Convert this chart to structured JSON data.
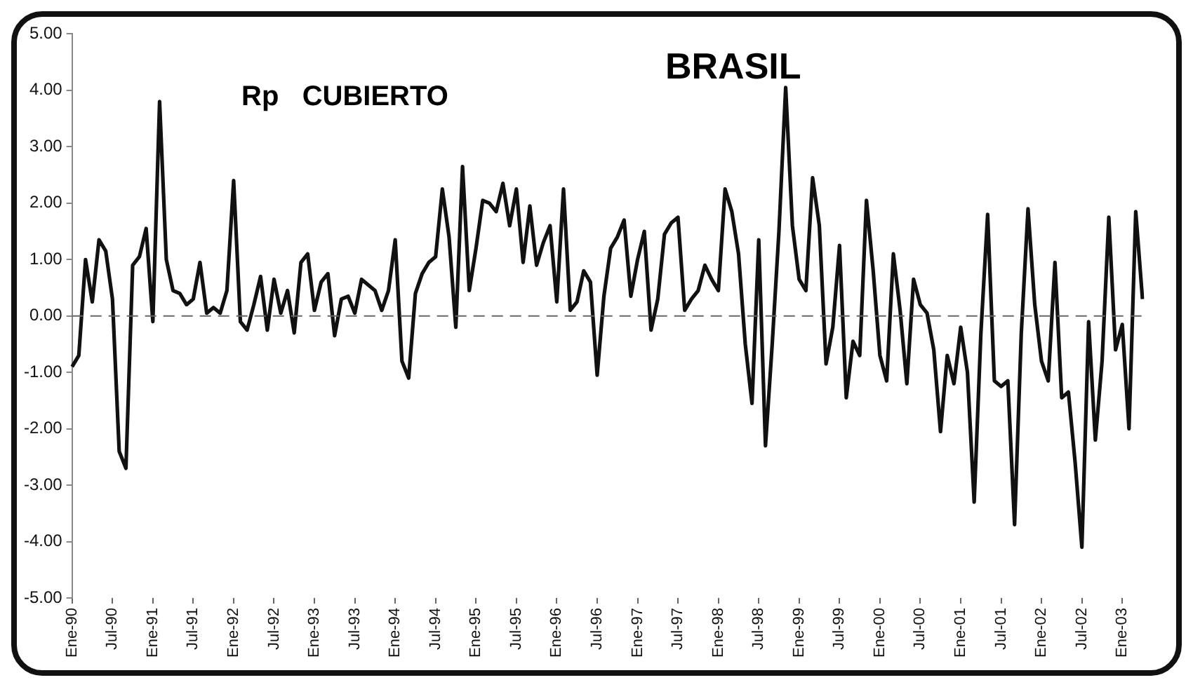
{
  "chart_data": {
    "type": "line",
    "title": "BRASIL",
    "subtitle": "Rp   CUBIERTO",
    "categories": [
      "Ene-90",
      null,
      null,
      null,
      null,
      null,
      "Jul-90",
      null,
      null,
      null,
      null,
      null,
      "Ene-91",
      null,
      null,
      null,
      null,
      null,
      "Jul-91",
      null,
      null,
      null,
      null,
      null,
      "Ene-92",
      null,
      null,
      null,
      null,
      null,
      "Jul-92",
      null,
      null,
      null,
      null,
      null,
      "Ene-93",
      null,
      null,
      null,
      null,
      null,
      "Jul-93",
      null,
      null,
      null,
      null,
      null,
      "Ene-94",
      null,
      null,
      null,
      null,
      null,
      "Jul-94",
      null,
      null,
      null,
      null,
      null,
      "Ene-95",
      null,
      null,
      null,
      null,
      null,
      "Jul-95",
      null,
      null,
      null,
      null,
      null,
      "Ene-96",
      null,
      null,
      null,
      null,
      null,
      "Jul-96",
      null,
      null,
      null,
      null,
      null,
      "Ene-97",
      null,
      null,
      null,
      null,
      null,
      "Jul-97",
      null,
      null,
      null,
      null,
      null,
      "Ene-98",
      null,
      null,
      null,
      null,
      null,
      "Jul-98",
      null,
      null,
      null,
      null,
      null,
      "Ene-99",
      null,
      null,
      null,
      null,
      null,
      "Jul-99",
      null,
      null,
      null,
      null,
      null,
      "Ene-00",
      null,
      null,
      null,
      null,
      null,
      "Jul-00",
      null,
      null,
      null,
      null,
      null,
      "Ene-01",
      null,
      null,
      null,
      null,
      null,
      "Jul-01",
      null,
      null,
      null,
      null,
      null,
      "Ene-02",
      null,
      null,
      null,
      null,
      null,
      "Jul-02",
      null,
      null,
      null,
      null,
      null,
      "Ene-03",
      null,
      null,
      null
    ],
    "series": [
      {
        "color": "#111111",
        "values": [
          -0.9,
          -0.7,
          1.0,
          0.25,
          1.35,
          1.15,
          0.3,
          -2.4,
          -2.7,
          0.9,
          1.05,
          1.55,
          -0.1,
          3.8,
          1.0,
          0.45,
          0.4,
          0.2,
          0.3,
          0.95,
          0.05,
          0.15,
          0.05,
          0.45,
          2.4,
          -0.1,
          -0.25,
          0.2,
          0.7,
          -0.25,
          0.65,
          0.05,
          0.45,
          -0.3,
          0.95,
          1.1,
          0.1,
          0.6,
          0.75,
          -0.35,
          0.3,
          0.35,
          0.05,
          0.65,
          0.55,
          0.45,
          0.1,
          0.45,
          1.35,
          -0.8,
          -1.1,
          0.4,
          0.75,
          0.95,
          1.05,
          2.25,
          1.4,
          -0.2,
          2.65,
          0.45,
          1.2,
          2.05,
          2.0,
          1.85,
          2.35,
          1.6,
          2.25,
          0.95,
          1.95,
          0.9,
          1.3,
          1.6,
          0.25,
          2.25,
          0.1,
          0.25,
          0.8,
          0.6,
          -1.05,
          0.35,
          1.2,
          1.4,
          1.7,
          0.35,
          1.0,
          1.5,
          -0.25,
          0.3,
          1.45,
          1.65,
          1.75,
          0.1,
          0.3,
          0.45,
          0.9,
          0.65,
          0.45,
          2.25,
          1.85,
          1.1,
          -0.5,
          -1.55,
          1.35,
          -2.3,
          -0.5,
          1.5,
          4.05,
          1.6,
          0.65,
          0.45,
          2.45,
          1.6,
          -0.85,
          -0.2,
          1.25,
          -1.45,
          -0.45,
          -0.7,
          2.05,
          0.8,
          -0.7,
          -1.15,
          1.1,
          0.1,
          -1.2,
          0.65,
          0.2,
          0.05,
          -0.6,
          -2.05,
          -0.7,
          -1.2,
          -0.2,
          -1.0,
          -3.3,
          -0.3,
          1.8,
          -1.15,
          -1.25,
          -1.15,
          -3.7,
          -0.3,
          1.9,
          0.2,
          -0.8,
          -1.15,
          0.95,
          -1.45,
          -1.35,
          -2.6,
          -4.1,
          -0.1,
          -2.2,
          -0.8,
          1.75,
          -0.6,
          -0.15,
          -2.0,
          1.85,
          0.3
        ]
      }
    ],
    "ylim": [
      -5,
      5
    ],
    "yticks": [
      {
        "value": -5,
        "label": "-5.00"
      },
      {
        "value": -4,
        "label": "-4.00"
      },
      {
        "value": -3,
        "label": "-3.00"
      },
      {
        "value": -2,
        "label": "-2.00"
      },
      {
        "value": -1,
        "label": "-1.00"
      },
      {
        "value": 0,
        "label": "0.00"
      },
      {
        "value": 1,
        "label": "1.00"
      },
      {
        "value": 2,
        "label": "2.00"
      },
      {
        "value": 3,
        "label": "3.00"
      },
      {
        "value": 4,
        "label": "4.00"
      },
      {
        "value": 5,
        "label": "5.00"
      }
    ],
    "ref_lines": [
      {
        "axis": "y",
        "value": 0,
        "color": "#666666",
        "line_style": "dashed"
      }
    ],
    "grid": false,
    "legend": false,
    "marker": "none",
    "line_style": "solid"
  }
}
